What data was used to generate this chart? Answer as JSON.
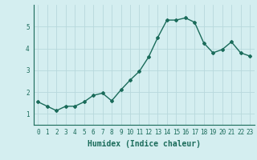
{
  "x": [
    0,
    1,
    2,
    3,
    4,
    5,
    6,
    7,
    8,
    9,
    10,
    11,
    12,
    13,
    14,
    15,
    16,
    17,
    18,
    19,
    20,
    21,
    22,
    23
  ],
  "y": [
    1.55,
    1.35,
    1.15,
    1.35,
    1.35,
    1.55,
    1.85,
    1.95,
    1.6,
    2.1,
    2.55,
    2.95,
    3.6,
    4.5,
    5.3,
    5.3,
    5.4,
    5.2,
    4.25,
    3.8,
    3.95,
    4.3,
    3.8,
    3.65
  ],
  "line_color": "#1a6b5a",
  "marker": "D",
  "marker_size": 2.0,
  "linewidth": 1.0,
  "xlabel": "Humidex (Indice chaleur)",
  "xlabel_fontsize": 7,
  "background_color": "#d4eef0",
  "grid_color": "#b8d8dc",
  "ylim": [
    0.5,
    6.0
  ],
  "xlim": [
    -0.5,
    23.5
  ],
  "yticks": [
    1,
    2,
    3,
    4,
    5
  ],
  "xticks": [
    0,
    1,
    2,
    3,
    4,
    5,
    6,
    7,
    8,
    9,
    10,
    11,
    12,
    13,
    14,
    15,
    16,
    17,
    18,
    19,
    20,
    21,
    22,
    23
  ],
  "tick_fontsize": 5.5,
  "tick_color": "#1a6b5a"
}
